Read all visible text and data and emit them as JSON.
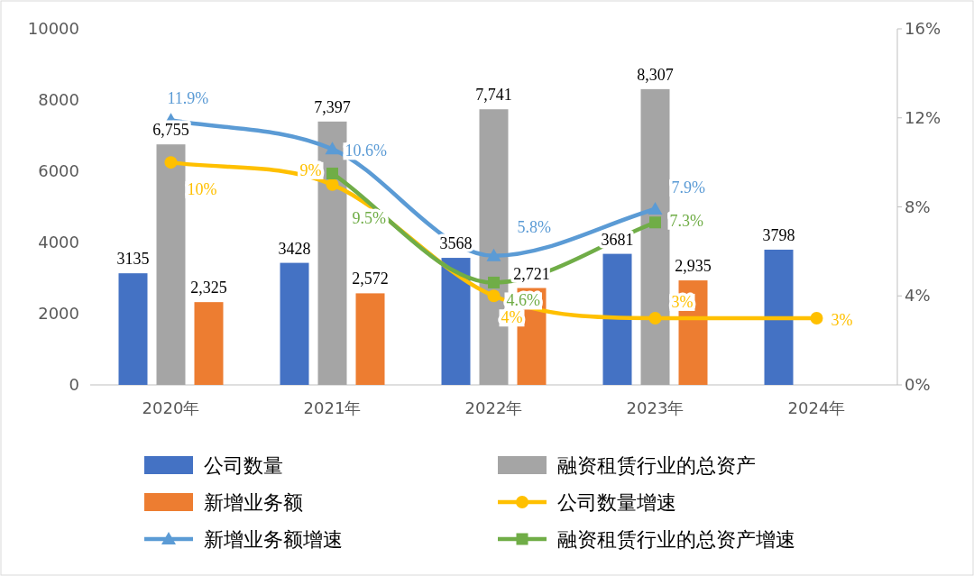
{
  "chart_data": {
    "type": "bar",
    "categories": [
      "2020年",
      "2021年",
      "2022年",
      "2023年",
      "2024年"
    ],
    "ylim": [
      0,
      10000
    ],
    "yticks": [
      0,
      2000,
      4000,
      6000,
      8000,
      10000
    ],
    "y2lim": [
      0,
      16
    ],
    "y2ticks": [
      {
        "value": 0,
        "label": "0%"
      },
      {
        "value": 4,
        "label": "4%"
      },
      {
        "value": 8,
        "label": "8%"
      },
      {
        "value": 12,
        "label": "12%"
      },
      {
        "value": 16,
        "label": "16%"
      }
    ],
    "legend": "bottom",
    "series": [
      {
        "name": "公司数量",
        "color": "#4472c4",
        "values": [
          3135,
          3428,
          3568,
          3681,
          3798
        ],
        "value_labels": [
          "3135",
          "3428",
          "3568",
          "3681",
          "3798"
        ]
      },
      {
        "name": "融资租赁行业的总资产",
        "color": "#a5a5a5",
        "values": [
          6755,
          7397,
          7741,
          8307,
          null
        ],
        "value_labels": [
          "6,755",
          "7,397",
          "7,741",
          "8,307",
          null
        ]
      },
      {
        "name": "新增业务额",
        "color": "#ed7d31",
        "values": [
          2325,
          2572,
          2721,
          2935,
          null
        ],
        "value_labels": [
          "2,325",
          "2,572",
          "2,721",
          "2,935",
          null
        ]
      },
      {
        "name": "公司数量增速",
        "type": "line",
        "axis": "y2",
        "marker": "circle",
        "color": "#ffc000",
        "values": [
          10,
          9,
          4,
          3,
          3
        ],
        "value_labels": [
          "10%",
          "9%",
          "4%",
          "3%",
          "3%"
        ]
      },
      {
        "name": "新增业务额增速",
        "type": "line",
        "axis": "y2",
        "marker": "triangle",
        "color": "#5b9bd5",
        "values": [
          11.9,
          10.6,
          5.8,
          7.9,
          null
        ],
        "value_labels": [
          "11.9%",
          "10.6%",
          "5.8%",
          "7.9%",
          null
        ]
      },
      {
        "name": "融资租赁行业的总资产增速",
        "type": "line",
        "axis": "y2",
        "marker": "square",
        "color": "#70ad47",
        "values": [
          null,
          9.5,
          4.6,
          7.3,
          null
        ],
        "value_labels": [
          null,
          "9.5%",
          "4.6%",
          "7.3%",
          null
        ]
      }
    ]
  }
}
